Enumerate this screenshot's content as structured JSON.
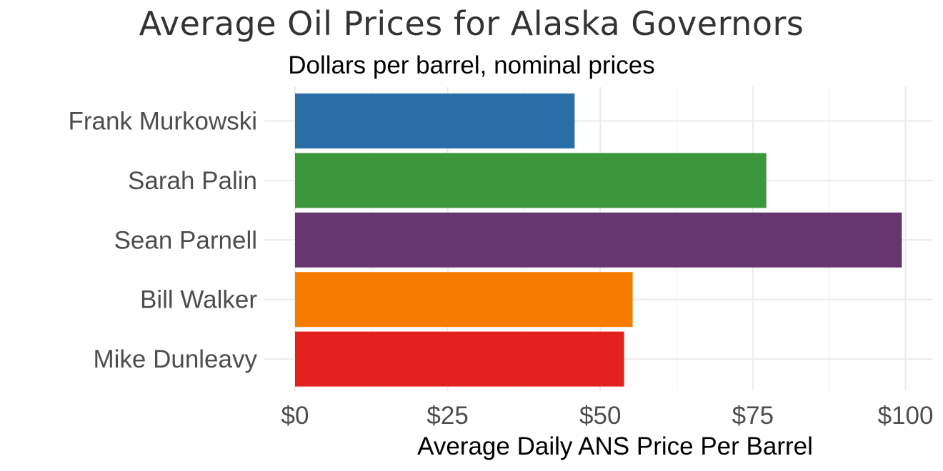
{
  "chart_data": {
    "type": "bar",
    "orientation": "horizontal",
    "title": "Average Oil Prices for Alaska Governors",
    "subtitle": "Dollars per barrel, nominal prices",
    "xlabel": "Average Daily ANS Price Per Barrel",
    "ylabel": "",
    "categories": [
      "Frank Murkowski",
      "Sarah Palin",
      "Sean Parnell",
      "Bill Walker",
      "Mike Dunleavy"
    ],
    "values": [
      45.8,
      77.2,
      99.4,
      55.3,
      53.9
    ],
    "colors": [
      "#2a6ea8",
      "#3c963c",
      "#673670",
      "#f67c00",
      "#e3211d"
    ],
    "xlim": [
      0,
      103.5
    ],
    "ticks": [
      0,
      25,
      50,
      75,
      100
    ],
    "tick_labels": [
      "$0",
      "$25",
      "$50",
      "$75",
      "$100"
    ],
    "grid": true,
    "legend": "none"
  }
}
